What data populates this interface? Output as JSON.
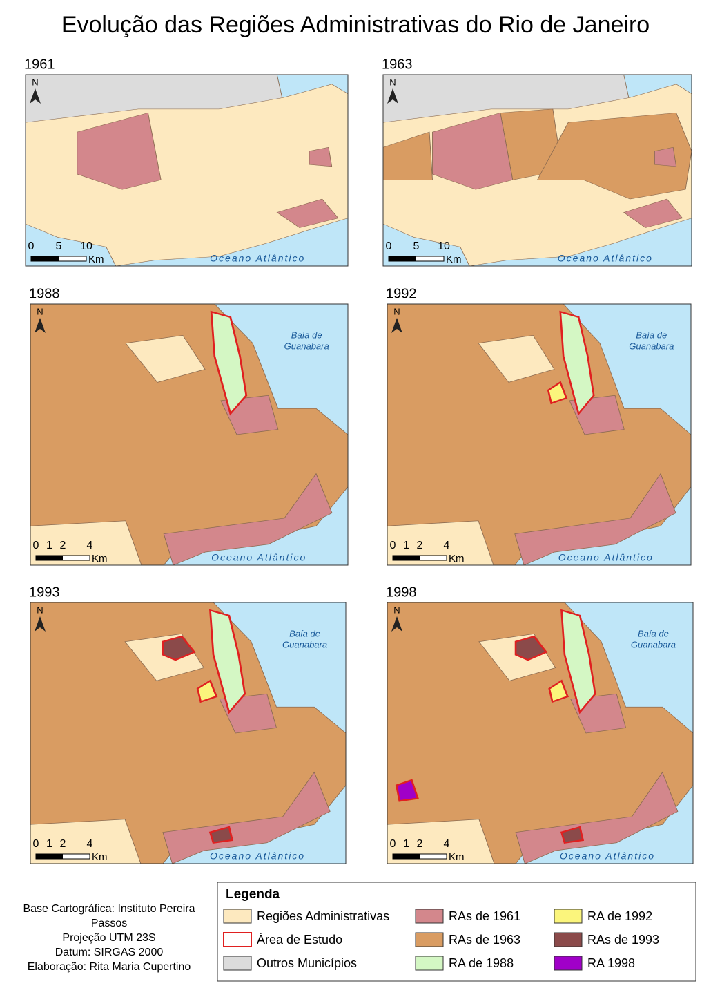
{
  "title": "Evolução das Regiões Administrativas do Rio de Janeiro",
  "panels": [
    {
      "year": "1961",
      "scale": [
        0,
        5,
        10
      ],
      "unit": "Km",
      "ocean": "Oceano Atlântico"
    },
    {
      "year": "1963",
      "scale": [
        0,
        5,
        10
      ],
      "unit": "Km",
      "ocean": "Oceano Atlântico"
    },
    {
      "year": "1988",
      "scale": [
        0,
        1,
        2,
        4
      ],
      "unit": "Km",
      "ocean": "Oceano Atlântico",
      "bay": [
        "Baía de",
        "Guanabara"
      ]
    },
    {
      "year": "1992",
      "scale": [
        0,
        1,
        2,
        4
      ],
      "unit": "Km",
      "ocean": "Oceano Atlântico",
      "bay": [
        "Baía de",
        "Guanabara"
      ]
    },
    {
      "year": "1993",
      "scale": [
        0,
        1,
        2,
        4
      ],
      "unit": "Km",
      "ocean": "Oceano Atlântico",
      "bay": [
        "Baía de",
        "Guanabara"
      ]
    },
    {
      "year": "1998",
      "scale": [
        0,
        1,
        2,
        4
      ],
      "unit": "Km",
      "ocean": "Oceano Atlântico",
      "bay": [
        "Baía de",
        "Guanabara"
      ]
    }
  ],
  "legend": {
    "title": "Legenda",
    "items": [
      {
        "label": "Regiões Administrativas",
        "color": "#fde9bf"
      },
      {
        "label": "Área  de Estudo",
        "color": "#ffffff",
        "outline": "#e02020"
      },
      {
        "label": "Outros Municípios",
        "color": "#dcdcdc"
      },
      {
        "label": "RAs de 1961",
        "color": "#d3878c"
      },
      {
        "label": "RAs de 1963",
        "color": "#d99c62"
      },
      {
        "label": "RA de 1988",
        "color": "#d4f7c4"
      },
      {
        "label": "RA de 1992",
        "color": "#fbf57c"
      },
      {
        "label": "RAs de 1993",
        "color": "#8b4a4a"
      },
      {
        "label": "RA 1998",
        "color": "#a000c8"
      }
    ]
  },
  "credits": [
    "Base Cartográfica: Instituto Pereira",
    "Passos",
    "Projeção UTM 23S",
    "Datum: SIRGAS 2000",
    "Elaboração: Rita Maria Cupertino"
  ]
}
